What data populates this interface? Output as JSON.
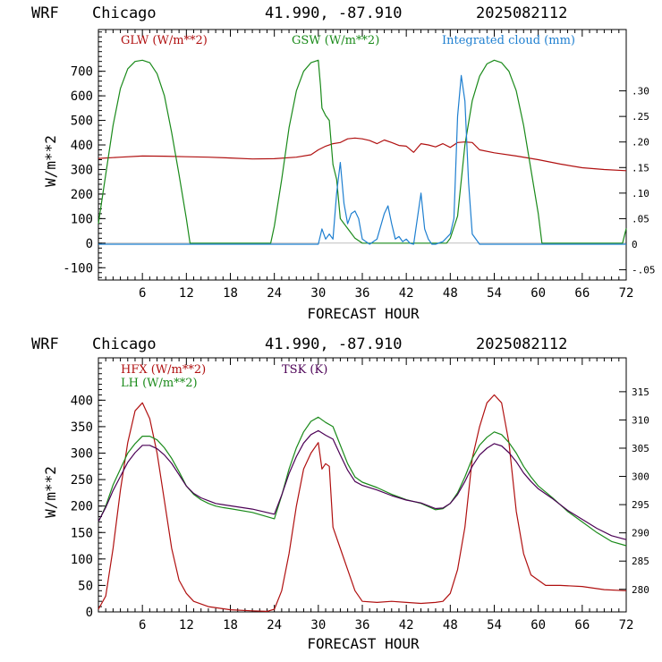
{
  "chart_data": [
    {
      "type": "line",
      "header": {
        "model": "WRF",
        "city": "Chicago",
        "coords": "41.990, -87.910",
        "run": "2025082112"
      },
      "xlabel": "FORECAST HOUR",
      "ylabel": "W/m**2",
      "xlim": [
        0,
        72
      ],
      "ylim": [
        -150,
        870
      ],
      "y2lim": [
        -0.07,
        0.42
      ],
      "xticks": [
        "6",
        "12",
        "18",
        "24",
        "30",
        "36",
        "42",
        "48",
        "54",
        "60",
        "66",
        "72"
      ],
      "yticks": [
        "-100",
        "0",
        "100",
        "200",
        "300",
        "400",
        "500",
        "600",
        "700"
      ],
      "y2ticks": [
        "-.05",
        "0",
        ".05",
        ".10",
        ".15",
        ".20",
        ".25",
        ".30"
      ],
      "legend": [
        {
          "label": "GLW (W/m**2)",
          "color": "#b01010"
        },
        {
          "label": "GSW (W/m**2)",
          "color": "#1a8a1a"
        },
        {
          "label": "Integrated cloud (mm)",
          "color": "#1e7fd0"
        }
      ],
      "series": [
        {
          "name": "GLW (W/m**2)",
          "color": "#b01010",
          "axis": "left",
          "x": [
            0,
            3,
            6,
            9,
            12,
            15,
            18,
            21,
            24,
            27,
            29,
            30,
            31,
            32,
            33,
            34,
            35,
            36,
            37,
            38,
            39,
            40,
            41,
            42,
            43,
            44,
            45,
            46,
            47,
            48,
            49,
            50,
            51,
            52,
            54,
            57,
            60,
            63,
            66,
            69,
            72
          ],
          "y": [
            345,
            350,
            355,
            354,
            352,
            350,
            347,
            343,
            344,
            350,
            360,
            380,
            395,
            405,
            410,
            425,
            428,
            425,
            418,
            405,
            420,
            410,
            398,
            395,
            370,
            405,
            400,
            392,
            405,
            390,
            410,
            412,
            410,
            380,
            368,
            355,
            340,
            322,
            307,
            300,
            295
          ]
        },
        {
          "name": "GSW (W/m**2)",
          "color": "#1a8a1a",
          "axis": "left",
          "x": [
            0,
            1,
            2,
            3,
            4,
            5,
            6,
            7,
            8,
            9,
            10,
            11,
            12,
            12.5,
            23.5,
            24,
            25,
            26,
            27,
            28,
            29,
            30,
            30.3,
            30.5,
            31,
            31.5,
            32,
            32.5,
            33,
            34,
            35,
            36,
            37,
            38,
            40,
            42,
            44,
            46,
            47.5,
            48,
            49,
            50,
            51,
            52,
            53,
            54,
            55,
            56,
            57,
            58,
            59,
            60,
            60.5,
            71.5,
            72
          ],
          "y": [
            80,
            280,
            480,
            630,
            710,
            740,
            745,
            735,
            690,
            600,
            450,
            280,
            100,
            0,
            0,
            70,
            260,
            470,
            620,
            700,
            735,
            745,
            640,
            550,
            520,
            500,
            320,
            260,
            100,
            60,
            20,
            0,
            0,
            0,
            0,
            0,
            0,
            0,
            0,
            20,
            110,
            400,
            580,
            680,
            730,
            745,
            735,
            700,
            620,
            480,
            300,
            120,
            0,
            0,
            60
          ]
        },
        {
          "name": "Integrated cloud (mm)",
          "color": "#1e7fd0",
          "axis": "right",
          "x": [
            0,
            30,
            30.5,
            31,
            31.5,
            32,
            32.5,
            33,
            33.5,
            34,
            34.5,
            35,
            35.5,
            36,
            37,
            38,
            39,
            39.5,
            40,
            40.5,
            41,
            41.5,
            42,
            42.5,
            43,
            43.5,
            44,
            44.5,
            45,
            45.5,
            46,
            47,
            48,
            48.5,
            49,
            49.5,
            50,
            50.5,
            51,
            52,
            60,
            72
          ],
          "y": [
            0,
            0,
            0.03,
            0.01,
            0.02,
            0.01,
            0.1,
            0.16,
            0.08,
            0.04,
            0.06,
            0.065,
            0.05,
            0.01,
            0,
            0.01,
            0.06,
            0.075,
            0.04,
            0.01,
            0.015,
            0.005,
            0.01,
            0.002,
            0,
            0.05,
            0.1,
            0.03,
            0.01,
            0,
            0,
            0.005,
            0.02,
            0.05,
            0.25,
            0.33,
            0.28,
            0.12,
            0.02,
            0,
            0,
            0
          ]
        }
      ]
    },
    {
      "type": "line",
      "header": {
        "model": "WRF",
        "city": "Chicago",
        "coords": "41.990, -87.910",
        "run": "2025082112"
      },
      "xlabel": "FORECAST HOUR",
      "ylabel": "W/m**2",
      "xlim": [
        0,
        72
      ],
      "ylim": [
        0,
        480
      ],
      "y2lim": [
        276,
        321
      ],
      "xticks": [
        "6",
        "12",
        "18",
        "24",
        "30",
        "36",
        "42",
        "48",
        "54",
        "60",
        "66",
        "72"
      ],
      "yticks": [
        "0",
        "50",
        "100",
        "150",
        "200",
        "250",
        "300",
        "350",
        "400"
      ],
      "y2ticks": [
        "280",
        "285",
        "290",
        "295",
        "300",
        "305",
        "310",
        "315"
      ],
      "legend": [
        {
          "label": "HFX (W/m**2)",
          "color": "#b01010"
        },
        {
          "label": "LH  (W/m**2)",
          "color": "#1a8a1a"
        },
        {
          "label": "TSK (K)",
          "color": "#4b0055"
        }
      ],
      "series": [
        {
          "name": "HFX (W/m**2)",
          "color": "#b01010",
          "axis": "left",
          "x": [
            0,
            1,
            2,
            3,
            4,
            5,
            6,
            7,
            8,
            9,
            10,
            11,
            12,
            13,
            15,
            18,
            21,
            23,
            24,
            25,
            26,
            27,
            28,
            29,
            30,
            30.5,
            31,
            31.5,
            32,
            33,
            34,
            35,
            36,
            38,
            40,
            42,
            44,
            46,
            47,
            48,
            49,
            50,
            51,
            52,
            53,
            54,
            55,
            56,
            57,
            58,
            59,
            60,
            61,
            63,
            66,
            69,
            72
          ],
          "y": [
            5,
            30,
            120,
            230,
            320,
            380,
            395,
            365,
            300,
            210,
            120,
            60,
            35,
            20,
            10,
            4,
            2,
            1,
            5,
            40,
            110,
            200,
            270,
            300,
            320,
            270,
            280,
            275,
            160,
            120,
            80,
            40,
            20,
            18,
            20,
            18,
            16,
            18,
            20,
            35,
            80,
            160,
            290,
            350,
            395,
            410,
            395,
            320,
            190,
            110,
            70,
            60,
            50,
            50,
            48,
            42,
            40
          ]
        },
        {
          "name": "LH  (W/m**2)",
          "color": "#1a8a1a",
          "axis": "left",
          "x": [
            0,
            1,
            2,
            3,
            4,
            5,
            6,
            7,
            8,
            9,
            10,
            11,
            12,
            13,
            14,
            15,
            16,
            17,
            18,
            21,
            24,
            25,
            26,
            27,
            28,
            29,
            30,
            31,
            32,
            33,
            34,
            35,
            36,
            38,
            40,
            42,
            44,
            46,
            47,
            48,
            49,
            50,
            51,
            52,
            53,
            54,
            55,
            56,
            57,
            58,
            59,
            60,
            62,
            64,
            66,
            68,
            70,
            72
          ],
          "y": [
            170,
            200,
            240,
            270,
            300,
            318,
            332,
            332,
            325,
            310,
            290,
            265,
            238,
            222,
            212,
            205,
            200,
            197,
            195,
            188,
            176,
            220,
            270,
            310,
            340,
            360,
            368,
            358,
            350,
            315,
            280,
            255,
            245,
            235,
            222,
            212,
            205,
            193,
            195,
            205,
            225,
            255,
            290,
            315,
            330,
            340,
            335,
            320,
            300,
            275,
            255,
            238,
            215,
            190,
            170,
            150,
            133,
            125
          ]
        },
        {
          "name": "TSK (K)",
          "color": "#4b0055",
          "axis": "right",
          "x": [
            0,
            1,
            2,
            3,
            4,
            5,
            6,
            7,
            8,
            9,
            10,
            11,
            12,
            13,
            14,
            15,
            16,
            17,
            18,
            21,
            24,
            25,
            26,
            27,
            28,
            29,
            30,
            31,
            32,
            33,
            34,
            35,
            36,
            38,
            40,
            42,
            44,
            46,
            47,
            48,
            49,
            50,
            51,
            52,
            53,
            54,
            55,
            56,
            57,
            58,
            59,
            60,
            62,
            64,
            66,
            68,
            70,
            72
          ],
          "y": [
            292.0,
            294.5,
            297.5,
            300.0,
            302.5,
            304.2,
            305.5,
            305.5,
            304.9,
            303.8,
            302.3,
            300.3,
            298.3,
            297.0,
            296.2,
            295.7,
            295.2,
            295.0,
            294.8,
            294.2,
            293.3,
            296.7,
            300.5,
            303.5,
            305.9,
            307.4,
            308.1,
            307.3,
            306.6,
            303.8,
            301.1,
            299.1,
            298.4,
            297.6,
            296.6,
            295.8,
            295.3,
            294.3,
            294.4,
            295.2,
            296.8,
            299.1,
            301.8,
            303.8,
            305.0,
            305.8,
            305.4,
            304.2,
            302.6,
            300.6,
            299.1,
            297.8,
            296.0,
            294.0,
            292.4,
            290.8,
            289.5,
            288.8
          ]
        }
      ]
    }
  ]
}
